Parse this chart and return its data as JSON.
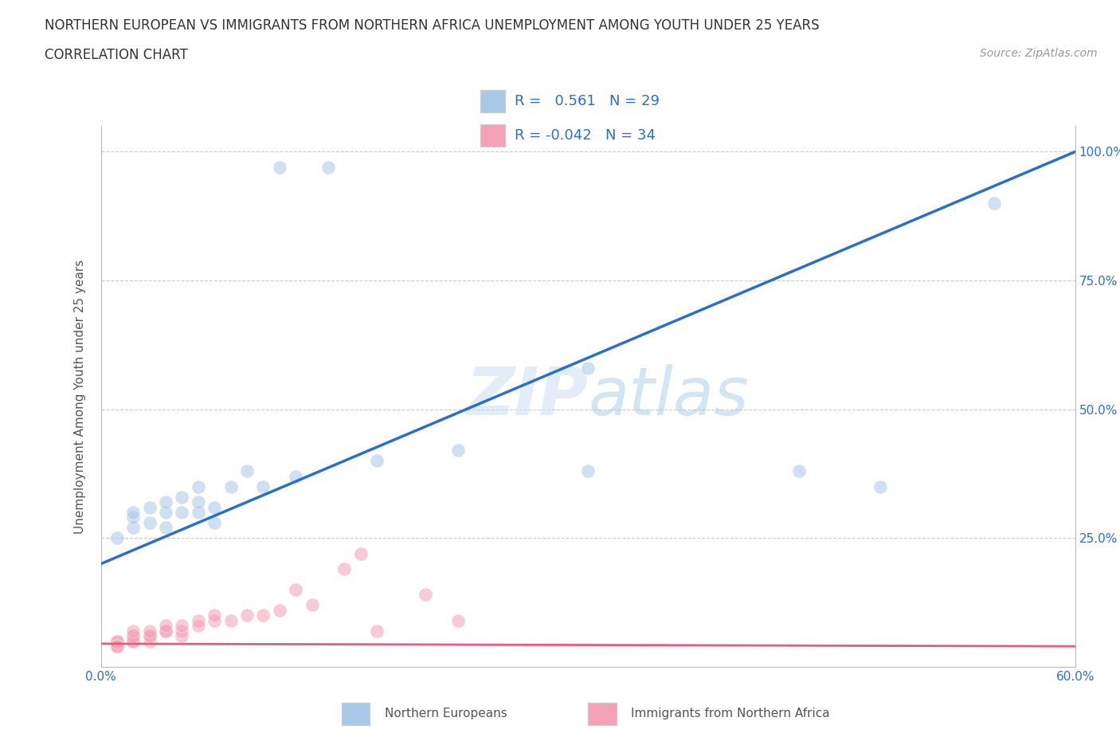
{
  "title_line1": "NORTHERN EUROPEAN VS IMMIGRANTS FROM NORTHERN AFRICA UNEMPLOYMENT AMONG YOUTH UNDER 25 YEARS",
  "title_line2": "CORRELATION CHART",
  "source": "Source: ZipAtlas.com",
  "ylabel": "Unemployment Among Youth under 25 years",
  "xlim": [
    0.0,
    0.6
  ],
  "ylim": [
    0.0,
    1.05
  ],
  "watermark": "ZIPatlas",
  "blue_color": "#a8c8e8",
  "blue_line_color": "#2b6fc9",
  "pink_color": "#f4a0b5",
  "pink_line_color": "#e06080",
  "bg_color": "#ffffff",
  "grid_color": "#cccccc",
  "title_fontsize": 12,
  "subtitle_fontsize": 12,
  "axis_label_fontsize": 11,
  "tick_fontsize": 11,
  "legend_fontsize": 13,
  "source_fontsize": 10,
  "scatter_size": 150,
  "scatter_alpha": 0.55,
  "blue_line_x0": 0.0,
  "blue_line_y0": 0.2,
  "blue_line_x1": 0.6,
  "blue_line_y1": 1.0,
  "pink_line_x0": 0.0,
  "pink_line_y0": 0.045,
  "pink_line_x1": 0.6,
  "pink_line_y1": 0.04,
  "blue_scatter_x": [
    0.11,
    0.14,
    0.01,
    0.02,
    0.02,
    0.02,
    0.03,
    0.03,
    0.04,
    0.04,
    0.04,
    0.05,
    0.05,
    0.06,
    0.06,
    0.06,
    0.07,
    0.07,
    0.08,
    0.09,
    0.1,
    0.12,
    0.17,
    0.22,
    0.3,
    0.3,
    0.43,
    0.48,
    0.55
  ],
  "blue_scatter_y": [
    0.97,
    0.97,
    0.25,
    0.27,
    0.29,
    0.3,
    0.28,
    0.31,
    0.27,
    0.3,
    0.32,
    0.3,
    0.33,
    0.3,
    0.32,
    0.35,
    0.28,
    0.31,
    0.35,
    0.38,
    0.35,
    0.37,
    0.4,
    0.42,
    0.38,
    0.58,
    0.38,
    0.35,
    0.9
  ],
  "pink_scatter_x": [
    0.01,
    0.01,
    0.01,
    0.01,
    0.02,
    0.02,
    0.02,
    0.02,
    0.02,
    0.03,
    0.03,
    0.03,
    0.03,
    0.04,
    0.04,
    0.04,
    0.05,
    0.05,
    0.05,
    0.06,
    0.06,
    0.07,
    0.07,
    0.08,
    0.09,
    0.1,
    0.11,
    0.12,
    0.13,
    0.15,
    0.16,
    0.17,
    0.2,
    0.22
  ],
  "pink_scatter_y": [
    0.05,
    0.05,
    0.04,
    0.04,
    0.06,
    0.05,
    0.05,
    0.06,
    0.07,
    0.05,
    0.06,
    0.06,
    0.07,
    0.07,
    0.07,
    0.08,
    0.06,
    0.07,
    0.08,
    0.09,
    0.08,
    0.09,
    0.1,
    0.09,
    0.1,
    0.1,
    0.11,
    0.15,
    0.12,
    0.19,
    0.22,
    0.07,
    0.14,
    0.09
  ]
}
